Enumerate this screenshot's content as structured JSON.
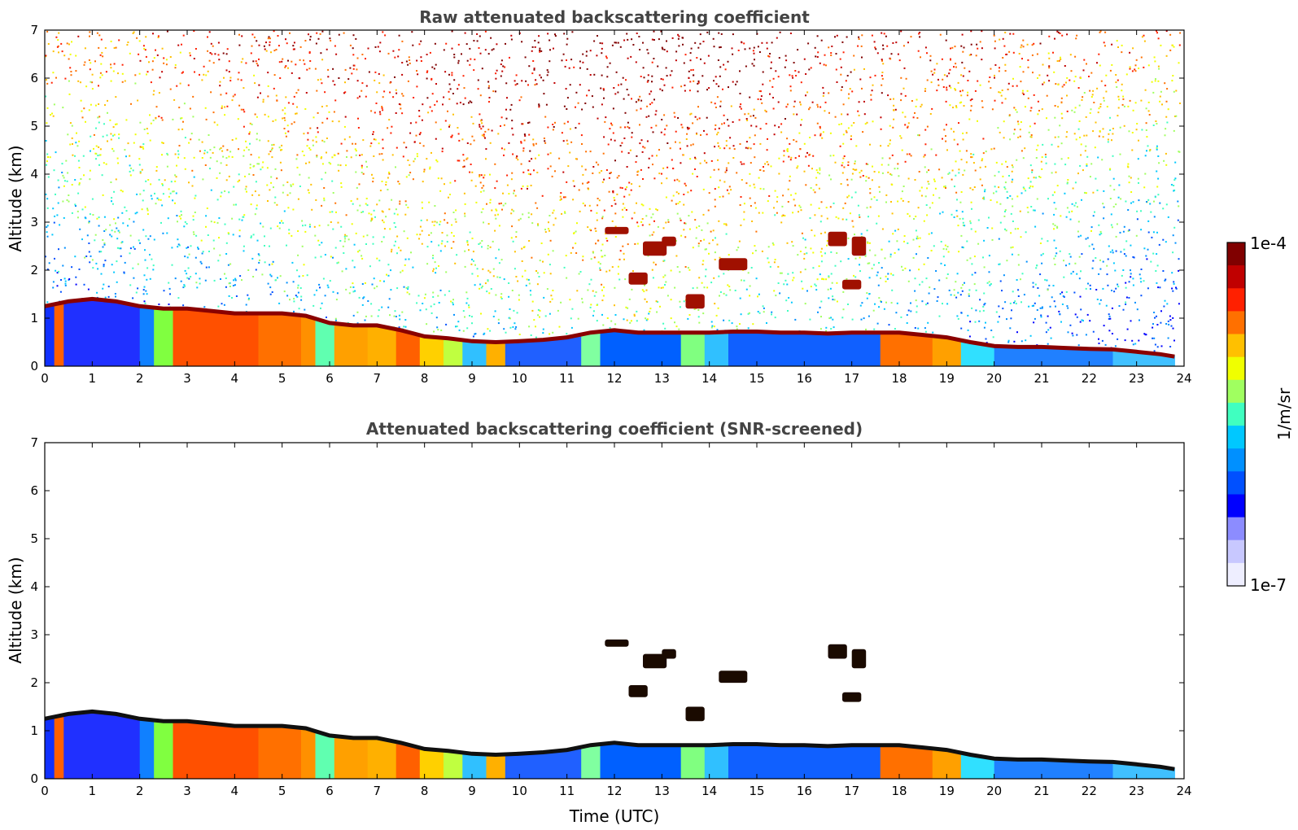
{
  "chart_data": [
    {
      "type": "heatmap",
      "title": "Raw attenuated backscattering coefficient",
      "xlabel": "",
      "ylabel": "Altitude (km)",
      "xlim": [
        0,
        24
      ],
      "ylim": [
        0,
        7
      ],
      "xticks": [
        "0",
        "1",
        "2",
        "3",
        "4",
        "5",
        "6",
        "7",
        "8",
        "9",
        "10",
        "11",
        "12",
        "13",
        "14",
        "15",
        "16",
        "17",
        "18",
        "19",
        "20",
        "21",
        "22",
        "23",
        "24"
      ],
      "yticks": [
        "0",
        "1",
        "2",
        "3",
        "4",
        "5",
        "6",
        "7"
      ],
      "screened": false,
      "layer_top_km": [
        [
          0,
          1.25
        ],
        [
          0.5,
          1.35
        ],
        [
          1,
          1.4
        ],
        [
          1.5,
          1.35
        ],
        [
          2,
          1.25
        ],
        [
          2.5,
          1.2
        ],
        [
          3,
          1.2
        ],
        [
          3.5,
          1.15
        ],
        [
          4,
          1.1
        ],
        [
          4.5,
          1.1
        ],
        [
          5,
          1.1
        ],
        [
          5.5,
          1.05
        ],
        [
          6,
          0.9
        ],
        [
          6.5,
          0.85
        ],
        [
          7,
          0.85
        ],
        [
          7.5,
          0.75
        ],
        [
          8,
          0.62
        ],
        [
          8.5,
          0.58
        ],
        [
          9,
          0.52
        ],
        [
          9.5,
          0.5
        ],
        [
          10,
          0.52
        ],
        [
          10.5,
          0.55
        ],
        [
          11,
          0.6
        ],
        [
          11.5,
          0.7
        ],
        [
          12,
          0.75
        ],
        [
          12.5,
          0.7
        ],
        [
          13,
          0.7
        ],
        [
          13.5,
          0.7
        ],
        [
          14,
          0.7
        ],
        [
          14.5,
          0.72
        ],
        [
          15,
          0.72
        ],
        [
          15.5,
          0.7
        ],
        [
          16,
          0.7
        ],
        [
          16.5,
          0.68
        ],
        [
          17,
          0.7
        ],
        [
          17.5,
          0.7
        ],
        [
          18,
          0.7
        ],
        [
          18.5,
          0.65
        ],
        [
          19,
          0.6
        ],
        [
          19.5,
          0.5
        ],
        [
          20,
          0.42
        ],
        [
          20.5,
          0.4
        ],
        [
          21,
          0.4
        ],
        [
          21.5,
          0.38
        ],
        [
          22,
          0.36
        ],
        [
          22.5,
          0.35
        ],
        [
          23,
          0.3
        ],
        [
          23.5,
          0.25
        ],
        [
          23.8,
          0.2
        ]
      ],
      "high_cloud_patches_km": [
        [
          11.8,
          2.75,
          0.5,
          0.15
        ],
        [
          12.6,
          2.3,
          0.5,
          0.3
        ],
        [
          12.3,
          1.7,
          0.4,
          0.25
        ],
        [
          13.0,
          2.5,
          0.3,
          0.2
        ],
        [
          14.2,
          2.0,
          0.6,
          0.25
        ],
        [
          16.5,
          2.5,
          0.4,
          0.3
        ],
        [
          16.8,
          1.6,
          0.4,
          0.2
        ],
        [
          17.0,
          2.3,
          0.3,
          0.4
        ],
        [
          13.5,
          1.2,
          0.4,
          0.3
        ]
      ]
    },
    {
      "type": "heatmap",
      "title": "Attenuated backscattering coefficient (SNR-screened)",
      "xlabel": "Time (UTC)",
      "ylabel": "Altitude (km)",
      "xlim": [
        0,
        24
      ],
      "ylim": [
        0,
        7
      ],
      "xticks": [
        "0",
        "1",
        "2",
        "3",
        "4",
        "5",
        "6",
        "7",
        "8",
        "9",
        "10",
        "11",
        "12",
        "13",
        "14",
        "15",
        "16",
        "17",
        "18",
        "19",
        "20",
        "21",
        "22",
        "23",
        "24"
      ],
      "yticks": [
        "0",
        "1",
        "2",
        "3",
        "4",
        "5",
        "6",
        "7"
      ],
      "screened": true,
      "layer_top_km": [
        [
          0,
          1.25
        ],
        [
          0.5,
          1.35
        ],
        [
          1,
          1.4
        ],
        [
          1.5,
          1.35
        ],
        [
          2,
          1.25
        ],
        [
          2.5,
          1.2
        ],
        [
          3,
          1.2
        ],
        [
          3.5,
          1.15
        ],
        [
          4,
          1.1
        ],
        [
          4.5,
          1.1
        ],
        [
          5,
          1.1
        ],
        [
          5.5,
          1.05
        ],
        [
          6,
          0.9
        ],
        [
          6.5,
          0.85
        ],
        [
          7,
          0.85
        ],
        [
          7.5,
          0.75
        ],
        [
          8,
          0.62
        ],
        [
          8.5,
          0.58
        ],
        [
          9,
          0.52
        ],
        [
          9.5,
          0.5
        ],
        [
          10,
          0.52
        ],
        [
          10.5,
          0.55
        ],
        [
          11,
          0.6
        ],
        [
          11.5,
          0.7
        ],
        [
          12,
          0.75
        ],
        [
          12.5,
          0.7
        ],
        [
          13,
          0.7
        ],
        [
          13.5,
          0.7
        ],
        [
          14,
          0.7
        ],
        [
          14.5,
          0.72
        ],
        [
          15,
          0.72
        ],
        [
          15.5,
          0.7
        ],
        [
          16,
          0.7
        ],
        [
          16.5,
          0.68
        ],
        [
          17,
          0.7
        ],
        [
          17.5,
          0.7
        ],
        [
          18,
          0.7
        ],
        [
          18.5,
          0.65
        ],
        [
          19,
          0.6
        ],
        [
          19.5,
          0.5
        ],
        [
          20,
          0.42
        ],
        [
          20.5,
          0.4
        ],
        [
          21,
          0.4
        ],
        [
          21.5,
          0.38
        ],
        [
          22,
          0.36
        ],
        [
          22.5,
          0.35
        ],
        [
          23,
          0.3
        ],
        [
          23.5,
          0.25
        ],
        [
          23.8,
          0.2
        ]
      ],
      "high_cloud_patches_km": [
        [
          11.8,
          2.75,
          0.5,
          0.15
        ],
        [
          12.6,
          2.3,
          0.5,
          0.3
        ],
        [
          12.3,
          1.7,
          0.4,
          0.25
        ],
        [
          13.0,
          2.5,
          0.3,
          0.2
        ],
        [
          14.2,
          2.0,
          0.6,
          0.25
        ],
        [
          16.5,
          2.5,
          0.4,
          0.3
        ],
        [
          16.8,
          1.6,
          0.4,
          0.2
        ],
        [
          17.0,
          2.3,
          0.3,
          0.4
        ],
        [
          13.5,
          1.2,
          0.4,
          0.3
        ]
      ]
    }
  ],
  "colorbar": {
    "max_label": "1e-4",
    "min_label": "1e-7",
    "unit_label": "1/m/sr",
    "colors": [
      "#eeeeff",
      "#c8c8ff",
      "#8c8cff",
      "#0000ff",
      "#0050ff",
      "#0090ff",
      "#00c8ff",
      "#40ffc0",
      "#a0ff60",
      "#f0ff00",
      "#ffc000",
      "#ff7000",
      "#ff2000",
      "#c00000",
      "#800000"
    ]
  },
  "column_colors_by_hour": [
    [
      0,
      "#1030ff"
    ],
    [
      0.2,
      "#ff6000"
    ],
    [
      0.4,
      "#2030ff"
    ],
    [
      2.0,
      "#1080ff"
    ],
    [
      2.3,
      "#80ff40"
    ],
    [
      2.7,
      "#ff5000"
    ],
    [
      4.5,
      "#ff7000"
    ],
    [
      5.3,
      "#ff9000"
    ],
    [
      5.6,
      "#60ffb0"
    ],
    [
      6.0,
      "#ffa000"
    ],
    [
      6.7,
      "#ffb000"
    ],
    [
      7.3,
      "#ff6000"
    ],
    [
      7.8,
      "#ffd000"
    ],
    [
      8.3,
      "#c0ff40"
    ],
    [
      8.7,
      "#30c0ff"
    ],
    [
      9.2,
      "#ffb000"
    ],
    [
      9.6,
      "#2060ff"
    ],
    [
      11.2,
      "#80ffa0"
    ],
    [
      11.6,
      "#0060ff"
    ],
    [
      13.3,
      "#80ff80"
    ],
    [
      13.8,
      "#30c0ff"
    ],
    [
      14.3,
      "#1060ff"
    ],
    [
      17.5,
      "#ff7000"
    ],
    [
      18.6,
      "#ffa000"
    ],
    [
      19.3,
      "#30e0ff"
    ],
    [
      20.0,
      "#2080ff"
    ],
    [
      22.5,
      "#40c0ff"
    ],
    [
      23.8,
      "#ffffff"
    ]
  ]
}
